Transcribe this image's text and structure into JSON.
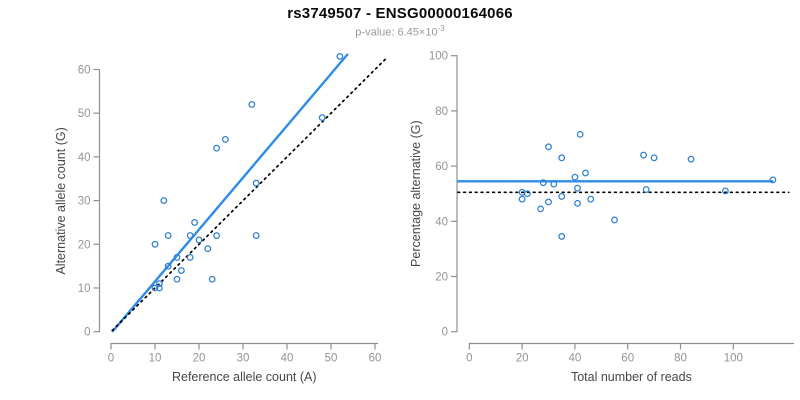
{
  "header": {
    "title": "rs3749507 - ENSG00000164066",
    "pvalue_prefix": "p-value: ",
    "pvalue_base": "6.45×10",
    "pvalue_exponent": "-3"
  },
  "colors": {
    "point_blue": "#2e7fd2",
    "line_blue": "#2f8ce8",
    "dotted_black": "#000000",
    "axis_line_gray": "#8f8f8f",
    "tick_label_gray": "#949494",
    "axis_title_gray": "#474747"
  },
  "chart_data": [
    {
      "type": "scatter",
      "name": "allele-counts-scatter",
      "xlabel": "Reference allele count (A)",
      "ylabel": "Alternative allele count (G)",
      "xticks": [
        0,
        10,
        20,
        30,
        40,
        50,
        60
      ],
      "yticks": [
        0,
        10,
        20,
        30,
        40,
        50,
        60
      ],
      "xlim": [
        -2.6,
        63.6
      ],
      "ylim": [
        -2.6,
        63.6
      ],
      "grid": false,
      "points": [
        [
          10,
          10
        ],
        [
          11,
          11
        ],
        [
          11,
          10
        ],
        [
          10,
          20
        ],
        [
          13,
          22
        ],
        [
          12,
          30
        ],
        [
          24,
          42
        ],
        [
          26,
          44
        ],
        [
          32,
          52
        ],
        [
          19,
          25
        ],
        [
          18,
          22
        ],
        [
          13,
          15
        ],
        [
          15,
          17
        ],
        [
          52,
          63
        ],
        [
          20,
          21
        ],
        [
          33,
          34
        ],
        [
          48,
          49
        ],
        [
          18,
          17
        ],
        [
          24,
          22
        ],
        [
          22,
          19
        ],
        [
          16,
          14
        ],
        [
          15,
          12
        ],
        [
          33,
          22
        ],
        [
          23,
          12
        ]
      ],
      "lines": [
        {
          "role": "fit-line",
          "x1": 0.4,
          "y1": 0.1,
          "x2": 53.7,
          "y2": 63.4,
          "style": "solid",
          "color_key": "line_blue",
          "width": 2.4
        },
        {
          "role": "identity-line",
          "x1": 0.3,
          "y1": 0.3,
          "x2": 62.8,
          "y2": 62.8,
          "style": "dotted",
          "color_key": "dotted_black",
          "width": 1.7
        }
      ]
    },
    {
      "type": "scatter",
      "name": "percentage-vs-coverage-scatter",
      "xlabel": "Total number of reads",
      "ylabel": "Percentage alternative (G)",
      "xticks": [
        0,
        20,
        40,
        60,
        80,
        100
      ],
      "yticks": [
        0,
        20,
        40,
        60,
        80,
        100
      ],
      "xlim": [
        -4.8,
        122.5
      ],
      "ylim": [
        -4.3,
        104.3
      ],
      "grid": false,
      "points": [
        [
          20,
          50.5
        ],
        [
          22,
          50
        ],
        [
          30,
          67
        ],
        [
          35,
          63
        ],
        [
          42,
          71.5
        ],
        [
          66,
          64
        ],
        [
          70,
          63
        ],
        [
          84,
          62.5
        ],
        [
          44,
          57.5
        ],
        [
          40,
          56
        ],
        [
          28,
          54
        ],
        [
          32,
          53.5
        ],
        [
          115,
          55
        ],
        [
          41,
          52
        ],
        [
          67,
          51.5
        ],
        [
          97,
          51
        ],
        [
          20,
          48
        ],
        [
          35,
          49
        ],
        [
          46,
          48
        ],
        [
          41,
          46.5
        ],
        [
          30,
          47
        ],
        [
          27,
          44.5
        ],
        [
          55,
          40.5
        ],
        [
          35,
          34.5
        ]
      ],
      "lines": [
        {
          "role": "fit-line",
          "x1": -4.3,
          "y1": 54.5,
          "x2": 114.8,
          "y2": 54.5,
          "style": "solid",
          "color_key": "line_blue",
          "width": 2.4
        },
        {
          "role": "null-line",
          "x1": -4.3,
          "y1": 50.5,
          "x2": 121.0,
          "y2": 50.5,
          "style": "dotted",
          "color_key": "dotted_black",
          "width": 1.7
        }
      ]
    }
  ]
}
